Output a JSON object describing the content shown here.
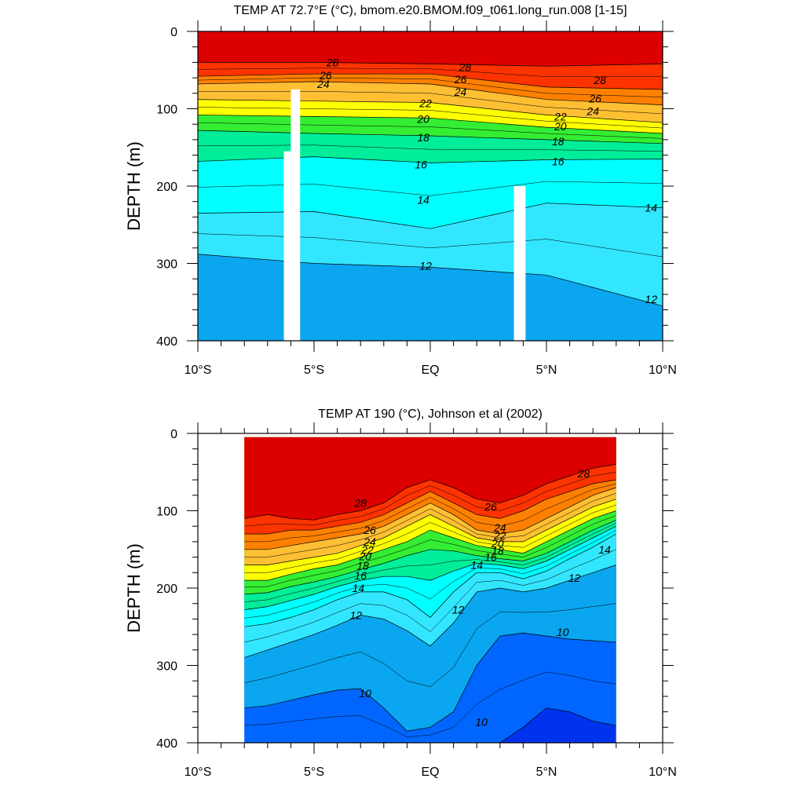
{
  "chart_data": [
    {
      "type": "heatmap",
      "subtype": "filled-contour",
      "title": "TEMP AT  72.7°E (°C), bmom.e20.BMOM.f09_t061.long_run.008 [1-15]",
      "xlabel": "",
      "ylabel": "DEPTH (m)",
      "xlim": [
        -10,
        10
      ],
      "ylim": [
        400,
        0
      ],
      "x_ticks": [
        -10,
        -5,
        0,
        5,
        10
      ],
      "x_tick_labels": [
        "10°S",
        "5°S",
        "EQ",
        "5°N",
        "10°N"
      ],
      "y_ticks": [
        0,
        100,
        200,
        300,
        400
      ],
      "y_tick_labels": [
        "0",
        "100",
        "200",
        "300",
        "400"
      ],
      "x": [
        -10,
        -5,
        0,
        5,
        10
      ],
      "isotherms": [
        {
          "value": 28,
          "depths": [
            40,
            40,
            42,
            45,
            42
          ]
        },
        {
          "value": 26,
          "depths": [
            58,
            55,
            55,
            72,
            75
          ]
        },
        {
          "value": 24,
          "depths": [
            68,
            65,
            68,
            88,
            95
          ]
        },
        {
          "value": 22,
          "depths": [
            88,
            90,
            92,
            108,
            118
          ]
        },
        {
          "value": 20,
          "depths": [
            108,
            110,
            112,
            124,
            132
          ]
        },
        {
          "value": 18,
          "depths": [
            128,
            132,
            135,
            140,
            145
          ]
        },
        {
          "value": 16,
          "depths": [
            168,
            162,
            170,
            166,
            165
          ]
        },
        {
          "value": 14,
          "depths": [
            235,
            233,
            255,
            222,
            228
          ]
        },
        {
          "value": 12,
          "depths": [
            288,
            300,
            305,
            315,
            355
          ]
        }
      ],
      "masked_columns": [
        {
          "x_from": -6.3,
          "x_to": -5.6,
          "depth_from": 155,
          "depth_to": 400
        },
        {
          "x_from": -6.0,
          "x_to": -5.6,
          "depth_from": 75,
          "depth_to": 155
        },
        {
          "x_from": 3.6,
          "x_to": 4.1,
          "depth_from": 200,
          "depth_to": 400
        }
      ],
      "contour_labels": [
        {
          "text": "28",
          "x": -4.2,
          "y": 40
        },
        {
          "text": "26",
          "x": -4.5,
          "y": 57
        },
        {
          "text": "24",
          "x": -4.6,
          "y": 68
        },
        {
          "text": "28",
          "x": 1.5,
          "y": 46
        },
        {
          "text": "26",
          "x": 1.3,
          "y": 62
        },
        {
          "text": "24",
          "x": 1.3,
          "y": 78
        },
        {
          "text": "22",
          "x": -0.2,
          "y": 93
        },
        {
          "text": "20",
          "x": -0.3,
          "y": 113
        },
        {
          "text": "18",
          "x": -0.3,
          "y": 137
        },
        {
          "text": "16",
          "x": -0.4,
          "y": 172
        },
        {
          "text": "14",
          "x": -0.3,
          "y": 218
        },
        {
          "text": "12",
          "x": -0.2,
          "y": 303
        },
        {
          "text": "28",
          "x": 7.3,
          "y": 63
        },
        {
          "text": "26",
          "x": 7.1,
          "y": 87
        },
        {
          "text": "24",
          "x": 7.0,
          "y": 103
        },
        {
          "text": "22",
          "x": 5.6,
          "y": 110
        },
        {
          "text": "20",
          "x": 5.6,
          "y": 123
        },
        {
          "text": "18",
          "x": 5.5,
          "y": 142
        },
        {
          "text": "16",
          "x": 5.5,
          "y": 168
        },
        {
          "text": "14",
          "x": 9.5,
          "y": 228
        },
        {
          "text": "12",
          "x": 9.5,
          "y": 346
        }
      ]
    },
    {
      "type": "heatmap",
      "subtype": "filled-contour",
      "title": "TEMP AT 190 (°C), Johnson et al (2002)",
      "xlabel": "",
      "ylabel": "DEPTH (m)",
      "xlim": [
        -10,
        10
      ],
      "ylim": [
        400,
        0
      ],
      "x_ticks": [
        -10,
        -5,
        0,
        5,
        10
      ],
      "x_tick_labels": [
        "10°S",
        "5°S",
        "EQ",
        "5°N",
        "10°N"
      ],
      "y_ticks": [
        0,
        100,
        200,
        300,
        400
      ],
      "y_tick_labels": [
        "0",
        "100",
        "200",
        "300",
        "400"
      ],
      "data_extent_x": [
        -8,
        8
      ],
      "data_extent_y": [
        5,
        400
      ],
      "x": [
        -8,
        -7,
        -6,
        -5,
        -4,
        -3,
        -2,
        -1,
        0,
        1,
        2,
        3,
        4,
        5,
        6,
        7,
        8
      ],
      "isotherms": [
        {
          "value": 28,
          "depths": [
            110,
            105,
            110,
            112,
            105,
            100,
            90,
            70,
            60,
            70,
            85,
            90,
            80,
            65,
            55,
            45,
            40
          ]
        },
        {
          "value": 26,
          "depths": [
            130,
            130,
            125,
            125,
            120,
            115,
            105,
            90,
            75,
            90,
            105,
            110,
            100,
            85,
            75,
            65,
            60
          ]
        },
        {
          "value": 24,
          "depths": [
            150,
            150,
            145,
            140,
            135,
            130,
            120,
            105,
            90,
            105,
            125,
            130,
            125,
            110,
            95,
            80,
            70
          ]
        },
        {
          "value": 22,
          "depths": [
            170,
            170,
            165,
            160,
            155,
            145,
            135,
            120,
            105,
            120,
            135,
            140,
            140,
            125,
            110,
            95,
            85
          ]
        },
        {
          "value": 20,
          "depths": [
            190,
            190,
            182,
            175,
            170,
            160,
            150,
            140,
            125,
            135,
            145,
            150,
            155,
            140,
            125,
            110,
            100
          ]
        },
        {
          "value": 18,
          "depths": [
            208,
            206,
            198,
            192,
            185,
            176,
            168,
            158,
            150,
            152,
            158,
            162,
            165,
            155,
            140,
            125,
            112
          ]
        },
        {
          "value": 16,
          "depths": [
            228,
            224,
            216,
            208,
            198,
            190,
            185,
            185,
            190,
            178,
            168,
            170,
            175,
            165,
            150,
            135,
            120
          ]
        },
        {
          "value": 14,
          "depths": [
            250,
            246,
            238,
            228,
            215,
            205,
            205,
            215,
            238,
            205,
            180,
            180,
            188,
            178,
            162,
            147,
            130
          ]
        },
        {
          "value": 12,
          "depths": [
            290,
            280,
            270,
            260,
            248,
            235,
            240,
            255,
            275,
            245,
            205,
            200,
            205,
            200,
            190,
            180,
            170
          ]
        },
        {
          "value": 10,
          "depths": [
            355,
            352,
            345,
            338,
            332,
            330,
            355,
            385,
            380,
            360,
            300,
            262,
            258,
            262,
            266,
            268,
            270
          ]
        },
        {
          "value": 8,
          "depths": [
            400,
            400,
            400,
            400,
            400,
            400,
            400,
            400,
            400,
            400,
            400,
            400,
            380,
            355,
            360,
            372,
            378
          ]
        }
      ],
      "contour_labels": [
        {
          "text": "28",
          "x": -3,
          "y": 90
        },
        {
          "text": "28",
          "x": 6.6,
          "y": 52
        },
        {
          "text": "26",
          "x": 2.6,
          "y": 95
        },
        {
          "text": "26",
          "x": -2.6,
          "y": 125
        },
        {
          "text": "24",
          "x": -2.6,
          "y": 140
        },
        {
          "text": "22",
          "x": -2.7,
          "y": 150
        },
        {
          "text": "20",
          "x": -2.8,
          "y": 159
        },
        {
          "text": "18",
          "x": -2.9,
          "y": 171
        },
        {
          "text": "16",
          "x": -3.0,
          "y": 184
        },
        {
          "text": "14",
          "x": -3.1,
          "y": 200
        },
        {
          "text": "12",
          "x": -3.2,
          "y": 235
        },
        {
          "text": "24",
          "x": 3.0,
          "y": 122
        },
        {
          "text": "22",
          "x": 3.0,
          "y": 132
        },
        {
          "text": "20",
          "x": 2.9,
          "y": 142
        },
        {
          "text": "18",
          "x": 2.9,
          "y": 152
        },
        {
          "text": "16",
          "x": 2.6,
          "y": 160
        },
        {
          "text": "14",
          "x": 2.0,
          "y": 170
        },
        {
          "text": "12",
          "x": 1.2,
          "y": 228
        },
        {
          "text": "12",
          "x": 6.2,
          "y": 187
        },
        {
          "text": "14",
          "x": 7.5,
          "y": 150
        },
        {
          "text": "10",
          "x": 5.7,
          "y": 257
        },
        {
          "text": "10",
          "x": -2.8,
          "y": 336
        },
        {
          "text": "10",
          "x": 2.2,
          "y": 373
        }
      ]
    }
  ],
  "colors": {
    "above_28": "#dc0000",
    "c26_28": "#ff3300",
    "c24_26": "#ff8000",
    "c22_24": "#ffbf33",
    "c20_22": "#ffff00",
    "c18_20": "#33ee33",
    "c16_18": "#00ee99",
    "c14_16": "#00ffff",
    "c12_14": "#33e6ff",
    "c10_12": "#0aa6f0",
    "c8_10": "#0066ff",
    "below_8": "#0033ee"
  }
}
